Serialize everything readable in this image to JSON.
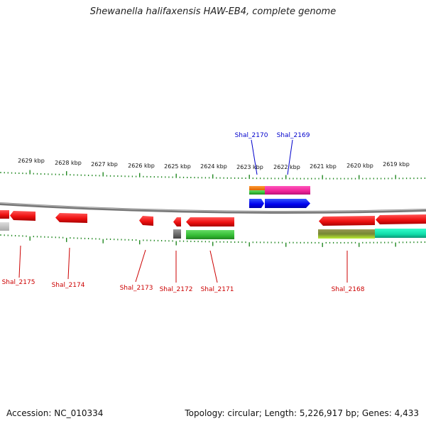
{
  "title": "Shewanella halifaxensis HAW-EB4, complete genome",
  "footer": {
    "accession": "Accession: NC_010334",
    "summary": "Topology: circular; Length: 5,226,917 bp; Genes: 4,433"
  },
  "scale": {
    "tick_labels": [
      "2629 kbp",
      "2628 kbp",
      "2627 kbp",
      "2626 kbp",
      "2625 kbp",
      "2624 kbp",
      "2623 kbp",
      "2622 kbp",
      "2621 kbp",
      "2620 kbp",
      "2619 kbp"
    ]
  },
  "top_genes": [
    "Shal_2170",
    "Shal_2169"
  ],
  "bottom_genes": [
    "Shal_2175",
    "Shal_2174",
    "Shal_2173",
    "Shal_2172",
    "Shal_2171",
    "Shal_2168"
  ],
  "colors": {
    "gene_red": "#ee1111",
    "gene_blue": "#0000ee",
    "gene_magenta": "#ee2299",
    "gene_green": "#33bb33",
    "tick_green": "#228822",
    "backbone": "#888888",
    "top_label": "#0000cc",
    "bottom_label": "#cc0000"
  }
}
